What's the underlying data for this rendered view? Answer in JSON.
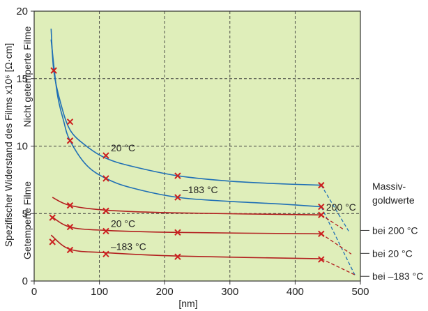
{
  "chart_data": {
    "type": "line",
    "xlabel": "[nm]",
    "ylabel": "Spezifischer Widerstand des Films x10⁶ [Ω·cm]",
    "xlim": [
      0,
      500
    ],
    "ylim": [
      0,
      20
    ],
    "x_ticks": [
      "0",
      "100",
      "200",
      "300",
      "400",
      "500"
    ],
    "y_ticks": [
      "0",
      "5",
      "10",
      "15",
      "20"
    ],
    "grid": true,
    "region_labels": {
      "upper": "Nicht getemperte Filme",
      "lower": "Getemperte Filme"
    },
    "series": [
      {
        "group": "upper",
        "label": "20 °C",
        "color": "#1f6fb5",
        "curve": [
          [
            26,
            18.7
          ],
          [
            30,
            15.6
          ],
          [
            40,
            13.3
          ],
          [
            55,
            11.2
          ],
          [
            80,
            10.0
          ],
          [
            110,
            9.1
          ],
          [
            150,
            8.5
          ],
          [
            220,
            7.8
          ],
          [
            300,
            7.4
          ],
          [
            380,
            7.2
          ],
          [
            440,
            7.1
          ]
        ],
        "measured": [
          [
            30,
            15.6
          ],
          [
            55,
            11.8
          ],
          [
            110,
            9.3
          ],
          [
            220,
            7.8
          ],
          [
            440,
            7.1
          ]
        ],
        "bulk": [
          482,
          3.7
        ]
      },
      {
        "group": "upper",
        "label": "–183 °C",
        "color": "#1f6fb5",
        "curve": [
          [
            26,
            17.9
          ],
          [
            35,
            14.0
          ],
          [
            45,
            11.9
          ],
          [
            55,
            10.4
          ],
          [
            80,
            8.6
          ],
          [
            110,
            7.6
          ],
          [
            150,
            6.9
          ],
          [
            220,
            6.2
          ],
          [
            300,
            5.9
          ],
          [
            380,
            5.7
          ],
          [
            440,
            5.5
          ]
        ],
        "measured": [
          [
            55,
            10.4
          ],
          [
            110,
            7.6
          ],
          [
            220,
            6.2
          ],
          [
            440,
            5.5
          ]
        ],
        "bulk": [
          492,
          0.4
        ]
      },
      {
        "group": "lower",
        "label": "200 °C",
        "color": "#b21f1f",
        "curve": [
          [
            28,
            6.2
          ],
          [
            55,
            5.6
          ],
          [
            110,
            5.25
          ],
          [
            220,
            5.05
          ],
          [
            440,
            4.9
          ]
        ],
        "measured": [
          [
            55,
            5.6
          ],
          [
            110,
            5.2
          ],
          [
            440,
            4.9
          ]
        ],
        "bulk": [
          475,
          3.8
        ]
      },
      {
        "group": "lower",
        "label": "20 °C",
        "color": "#b21f1f",
        "curve": [
          [
            26,
            4.8
          ],
          [
            55,
            4.0
          ],
          [
            110,
            3.75
          ],
          [
            220,
            3.6
          ],
          [
            440,
            3.5
          ]
        ],
        "measured": [
          [
            28,
            4.7
          ],
          [
            55,
            4.0
          ],
          [
            110,
            3.7
          ],
          [
            220,
            3.6
          ],
          [
            440,
            3.5
          ]
        ],
        "bulk": [
          486,
          2.0
        ]
      },
      {
        "group": "lower",
        "label": "–183 °C",
        "color": "#b21f1f",
        "curve": [
          [
            26,
            3.4
          ],
          [
            55,
            2.35
          ],
          [
            110,
            2.1
          ],
          [
            220,
            1.85
          ],
          [
            440,
            1.65
          ]
        ],
        "measured": [
          [
            28,
            2.9
          ],
          [
            55,
            2.3
          ],
          [
            110,
            2.0
          ],
          [
            220,
            1.8
          ],
          [
            440,
            1.6
          ]
        ],
        "bulk": [
          494,
          0.4
        ]
      }
    ],
    "bulk_values": {
      "title_line1": "Massiv-",
      "title_line2": "goldwerte",
      "labels": [
        "bei 200 °C",
        "bei 20 °C",
        "bei –183 °C"
      ],
      "y_values": [
        3.75,
        2.05,
        0.35
      ]
    }
  },
  "colors": {
    "plot_bg": "#dfeeba",
    "grid": "#3a3a3a",
    "axis": "#333333",
    "marker": "#cc1f1f"
  }
}
